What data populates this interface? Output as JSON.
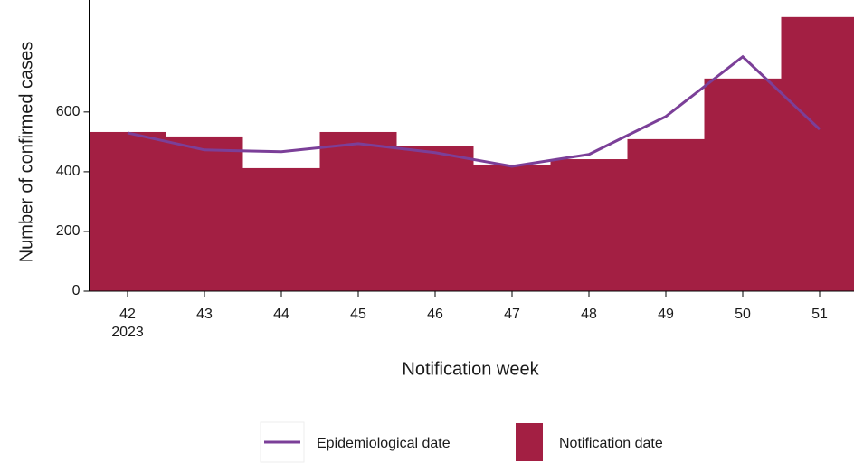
{
  "chart_data": {
    "type": "bar",
    "x_label": "Notification week",
    "y_label": "Number of confirmed cases",
    "categories": [
      "42",
      "43",
      "44",
      "45",
      "46",
      "47",
      "48",
      "49",
      "50",
      "51"
    ],
    "year": "2023",
    "series": [
      {
        "name": "Notification date",
        "type": "bar",
        "color": "#a31f43",
        "values": [
          533,
          518,
          412,
          533,
          485,
          424,
          442,
          509,
          712,
          918
        ]
      },
      {
        "name": "Epidemiological date",
        "type": "line",
        "color": "#7b3f98",
        "values": [
          530,
          473,
          467,
          494,
          464,
          418,
          458,
          585,
          785,
          542
        ]
      }
    ],
    "ylim": [
      0,
      975
    ],
    "yticks": [
      0,
      200,
      400,
      600
    ]
  }
}
